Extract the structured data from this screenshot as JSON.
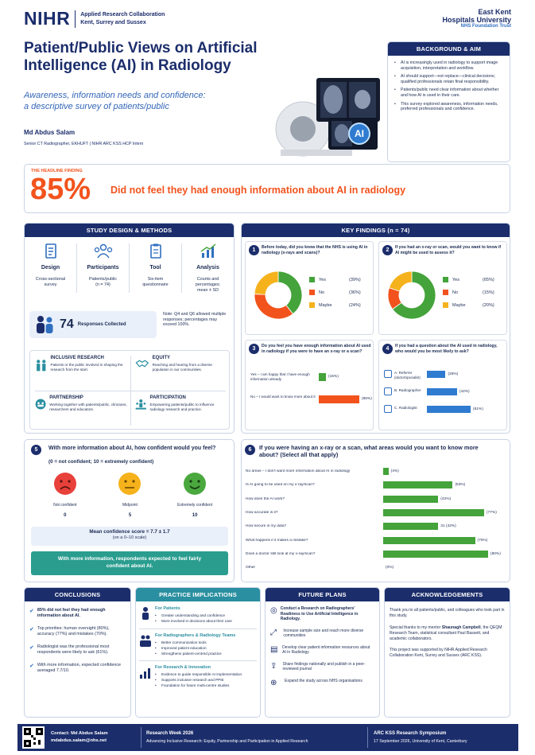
{
  "header": {
    "nihr": "NIHR",
    "nihr_sub1": "Applied Research Collaboration",
    "nihr_sub2": "Kent, Surrey and Sussex",
    "ek1": "East Kent",
    "ek2": "Hospitals University",
    "ek3": "NHS Foundation Trust",
    "title1": "Patient/Public Views on Artificial",
    "title2": "Intelligence (AI) in Radiology",
    "subtitle1": "Awareness, information needs and confidence:",
    "subtitle2": "a descriptive survey of patients/public",
    "author": "Md Abdus Salam",
    "role": "Senior CT Radiographer, EKHUFT | NIHR ARC KSS HCP Intern",
    "ai_badge": "AI"
  },
  "background": {
    "title": "BACKGROUND & AIM",
    "items": [
      "AI is increasingly used in radiology to support image acquisition, interpretation and workflow.",
      "AI should support—not replace—clinical decisions; qualified professionals retain final responsibility.",
      "Patients/public need clear information about whether and how AI is used in their care.",
      "This survey explored awareness, information needs, preferred professionals and confidence."
    ]
  },
  "headline": {
    "label": "THE HEADLINE FINDING",
    "value": "85%",
    "text": "Did not feel they had enough information about AI in radiology"
  },
  "methods": {
    "title": "STUDY DESIGN & METHODS",
    "cols": [
      {
        "title": "Design",
        "desc1": "Cross-sectional",
        "desc2": "survey",
        "icon": "document-icon"
      },
      {
        "title": "Participants",
        "desc1": "Patients/public",
        "desc2": "(n = 74)",
        "icon": "people-icon"
      },
      {
        "title": "Tool",
        "desc1": "Six-item",
        "desc2": "questionnaire",
        "icon": "questionnaire-icon"
      },
      {
        "title": "Analysis",
        "desc1": "Counts and",
        "desc2": "percentages;",
        "desc3": "mean ± SD",
        "icon": "chart-icon"
      }
    ],
    "responses_value": "74",
    "responses_label": "Responses Collected",
    "note": "Note: Q4 and Q6 allowed multiple responses; percentages may exceed 100%.",
    "principles": [
      {
        "title": "INCLUSIVE RESEARCH",
        "desc": "Patients or the public involved in shaping the research from the start."
      },
      {
        "title": "EQUITY",
        "desc": "Reaching and hearing from a diverse population in our communities."
      },
      {
        "title": "PARTNERSHIP",
        "desc": "Working together with patients/public, clinicians, researchers and educators."
      },
      {
        "title": "PARTICIPATION",
        "desc": "Empowering patients/public to influence radiology research and practice."
      }
    ]
  },
  "findings": {
    "title": "KEY FINDINGS (n = 74)"
  },
  "chart_data": [
    {
      "type": "pie",
      "id": "q1",
      "number": "1",
      "question": "Before today, did you know that the NHS is using AI in radiology (x-rays and scans)?",
      "categories": [
        "Yes",
        "No",
        "Maybe"
      ],
      "values": [
        39,
        36,
        24
      ],
      "labels": [
        "(39%)",
        "(36%)",
        "(24%)"
      ],
      "colors": [
        "#44a33a",
        "#f2531d",
        "#f5b21c"
      ]
    },
    {
      "type": "pie",
      "id": "q2",
      "number": "2",
      "question": "If you had an x-ray or scan, would you want to know if AI might be used to assess it?",
      "categories": [
        "Yes",
        "No",
        "Maybe"
      ],
      "values": [
        65,
        15,
        20
      ],
      "labels": [
        "(65%)",
        "(15%)",
        "(20%)"
      ],
      "colors": [
        "#44a33a",
        "#f2531d",
        "#f5b21c"
      ]
    },
    {
      "type": "bar",
      "id": "q3",
      "number": "3",
      "question": "Do you feel you have enough information about AI used in radiology if you were to have an x-ray or a scan?",
      "categories": [
        "Yes – I am happy that I have enough information already",
        "No – I would want to know more about it"
      ],
      "values": [
        15,
        85
      ],
      "labels": [
        "(15%)",
        "(85%)"
      ],
      "colors": [
        "#44a33a",
        "#f2531d"
      ]
    },
    {
      "type": "bar",
      "id": "q4",
      "number": "4",
      "question": "If you had a question about the AI used in radiology, who would you be most likely to ask?",
      "categories": [
        "A. Referrer",
        "B. Radiographer",
        "C. Radiologist"
      ],
      "sub": [
        "(doctor/specialist)",
        "",
        ""
      ],
      "values": [
        26,
        42,
        61
      ],
      "labels": [
        "(26%)",
        "(42%)",
        "(61%)"
      ]
    },
    {
      "type": "bar",
      "id": "q6",
      "number": "6",
      "question": "If you were having an x-ray or a scan, what areas would you want to know more about? (Select all that apply)",
      "categories": [
        "No areas – I don't want more information about AI in radiology",
        "Is AI going to be used on my x-ray/scan?",
        "How does the AI work?",
        "How accurate is it?",
        "How secure is my data?",
        "What happens if it makes a mistake?",
        "Does a doctor still look at my x-ray/scan?",
        "Other"
      ],
      "values": [
        4,
        53,
        42,
        77,
        42,
        70,
        80,
        0
      ],
      "labels": [
        "(4%)",
        "(53%)",
        "(42%)",
        "(77%)",
        "31 (42%)",
        "(70%)",
        "(80%)",
        "(0%)"
      ]
    }
  ],
  "q5": {
    "number": "5",
    "question": "With more information about AI, how confident would you feel?",
    "scale": "(0 = not confident; 10 = extremely confident)",
    "faces": [
      {
        "label": "Not confident",
        "value": "0",
        "color": "#e8403a"
      },
      {
        "label": "Midpoint",
        "value": "5",
        "color": "#f5b21c"
      },
      {
        "label": "Extremely confident",
        "value": "10",
        "color": "#4aa83e"
      }
    ],
    "mean_label": "Mean confidence score = 7.7 ± 1.7",
    "mean_sub": "(on a 0–10 scale)",
    "banner": "With more information, respondents expected to feel fairly confident about AI.",
    "confidence": 7.7
  },
  "conclusions": {
    "title": "CONCLUSIONS",
    "items": [
      "85% did not feel they had enough information about AI.",
      "Top priorities: human oversight (80%), accuracy (77%) and mistakes (70%).",
      "Radiologist was the professional most respondents were likely to ask (61%).",
      "With more information, expected confidence averaged 7.7/10."
    ]
  },
  "practice": {
    "title": "PRACTICE IMPLICATIONS",
    "groups": [
      {
        "title": "For Patients",
        "items": [
          "Greater understanding and confidence",
          "More involved in decisions about their care"
        ]
      },
      {
        "title": "For Radiographers & Radiology Teams",
        "items": [
          "Better communication tools",
          "Improved patient education",
          "Strengthens patient-centred practice"
        ]
      },
      {
        "title": "For Research & Innovation",
        "items": [
          "Evidence to guide responsible AI implementation",
          "Supports inclusive research and PPIE",
          "Foundation for future multi-centre studies"
        ]
      }
    ]
  },
  "future": {
    "title": "FUTURE PLANS",
    "items": [
      "Conduct a Research on Radiographers' Readiness to Use Artificial Intelligence in Radiology.",
      "Increase sample size and reach more diverse communities",
      "Develop clear patient information resources about AI in Radiology",
      "Share findings nationally and publish in a peer-reviewed journal",
      "Expand the study across NHS organisations"
    ]
  },
  "ack": {
    "title": "ACKNOWLEDGEMENTS",
    "p1": "Thank you to all patients/public, and colleagues who took part in this study.",
    "p2a": "Special thanks to my mentor ",
    "p2b": "Shaunagh Campbell",
    "p2c": ", the QEQM Research Team, statistical consultant Paul Bassett, and academic collaborators.",
    "p3": "This project was supported by NIHR Applied Research Collaboration Kent, Surrey and Sussex (ARC KSS)."
  },
  "footer": {
    "contact": "Contact:  Md Abdus Salam",
    "email": "mdabdus.salam@nhs.net",
    "event": "Research Week 2026",
    "event_sub": "Advancing Inclusive Research: Equity, Partnership and Participation in Applied Research",
    "symp": "ARC KSS Research Symposium",
    "symp_sub": "17 September 2026, University of Kent, Canterbury"
  }
}
